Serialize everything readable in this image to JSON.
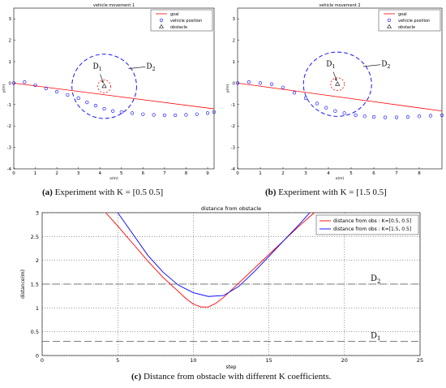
{
  "colors": {
    "goal": "#ff0000",
    "vehicle": "#0000ff",
    "obstacle": "#000000",
    "circle": "#0000ff",
    "inner_circle": "#ff0000",
    "dash_line": "#555555"
  },
  "chart_data": [
    {
      "type": "scatter",
      "title": "vehicle movement 1",
      "xlabel": "x(m)",
      "ylabel": "y(m)",
      "xlim": [
        0,
        9.3
      ],
      "ylim": [
        -4,
        3.5
      ],
      "xticks": [
        "0",
        "1",
        "2",
        "3",
        "4",
        "5",
        "6",
        "7",
        "8",
        "9"
      ],
      "yticks": [
        "-4",
        "-3",
        "-2",
        "-1",
        "0",
        "1",
        "2",
        "3"
      ],
      "legend": [
        "goal",
        "vehicle position",
        "obstacle"
      ],
      "legend_position": "top-right",
      "goal_line": {
        "x": [
          0,
          9.3
        ],
        "y": [
          0,
          -1.2
        ]
      },
      "obstacle": {
        "x": 4.2,
        "y": -0.15
      },
      "radius_D1": 0.3,
      "radius_D2": 1.5,
      "region_labels": {
        "d1": "D",
        "d1_sub": "1",
        "d2": "D",
        "d2_sub": "2"
      },
      "vehicle_x": [
        0,
        0.5,
        1.0,
        1.5,
        2.0,
        2.5,
        3.0,
        3.4,
        3.8,
        4.2,
        4.6,
        5.0,
        5.5,
        6.0,
        6.5,
        7.0,
        7.5,
        8.0,
        8.5,
        9.0,
        9.3
      ],
      "vehicle_y": [
        0,
        0.05,
        -0.1,
        -0.25,
        -0.4,
        -0.55,
        -0.7,
        -0.9,
        -1.05,
        -1.2,
        -1.3,
        -1.35,
        -1.4,
        -1.45,
        -1.48,
        -1.5,
        -1.5,
        -1.48,
        -1.45,
        -1.4,
        -1.35
      ],
      "caption_label": "(a)",
      "caption_text": " Experiment with  K = [0.5    0.5]"
    },
    {
      "type": "scatter",
      "title": "vehicle movement 2",
      "xlabel": "x(m)",
      "ylabel": "y(m)",
      "xlim": [
        0,
        9
      ],
      "ylim": [
        -4,
        3.5
      ],
      "xticks": [
        "0",
        "1",
        "2",
        "3",
        "4",
        "5",
        "6",
        "7",
        "8"
      ],
      "yticks": [
        "-4",
        "-3",
        "-2",
        "-1",
        "0",
        "1",
        "2",
        "3"
      ],
      "legend": [
        "goal",
        "vehicle position",
        "obstacle"
      ],
      "legend_position": "top-right",
      "goal_line": {
        "x": [
          0,
          9
        ],
        "y": [
          0,
          -1.3
        ]
      },
      "obstacle": {
        "x": 4.4,
        "y": -0.05
      },
      "radius_D1": 0.3,
      "radius_D2": 1.5,
      "region_labels": {
        "d1": "D",
        "d1_sub": "1",
        "d2": "D",
        "d2_sub": "2"
      },
      "vehicle_x": [
        0,
        0.5,
        1.0,
        1.5,
        2.0,
        2.5,
        3.0,
        3.5,
        3.9,
        4.3,
        4.7,
        5.2,
        5.6,
        6.0,
        6.5,
        7.0,
        7.5,
        8.0,
        8.5,
        9.0
      ],
      "vehicle_y": [
        0,
        0.05,
        0.0,
        -0.05,
        -0.2,
        -0.45,
        -0.7,
        -0.95,
        -1.15,
        -1.3,
        -1.4,
        -1.5,
        -1.55,
        -1.58,
        -1.6,
        -1.6,
        -1.58,
        -1.55,
        -1.52,
        -1.5
      ],
      "caption_label": "(b)",
      "caption_text": " Experiment with  K = [1.5    0.5]"
    },
    {
      "type": "line",
      "title": "distance from obstacle",
      "xlabel": "step",
      "ylabel": "distance(m)",
      "xlim": [
        0,
        25
      ],
      "ylim": [
        0,
        3
      ],
      "xticks": [
        "0",
        "5",
        "10",
        "15",
        "20",
        "25"
      ],
      "yticks": [
        "0",
        "0.5",
        "1",
        "1.5",
        "2",
        "2.5",
        "3"
      ],
      "grid": true,
      "legend_position": "top-right",
      "series": [
        {
          "name": "distance from obs : K=[0.5, 0.5]",
          "x": [
            4.2,
            5,
            6,
            7,
            8,
            9,
            9.5,
            10,
            10.5,
            11,
            11.5,
            12,
            13,
            14,
            15,
            16,
            17,
            18
          ],
          "y": [
            3.0,
            2.72,
            2.35,
            1.98,
            1.64,
            1.35,
            1.2,
            1.08,
            1.02,
            1.02,
            1.1,
            1.22,
            1.52,
            1.82,
            2.12,
            2.42,
            2.72,
            3.0
          ]
        },
        {
          "name": "distance from obs : K=[1.5, 0.5]",
          "x": [
            5,
            6,
            7,
            8,
            9,
            10,
            11,
            12,
            13,
            14,
            15,
            16,
            17,
            17.7
          ],
          "y": [
            3.0,
            2.55,
            2.1,
            1.75,
            1.48,
            1.32,
            1.24,
            1.26,
            1.45,
            1.75,
            2.08,
            2.42,
            2.75,
            3.0
          ]
        }
      ],
      "thresholds": [
        {
          "label": "D",
          "sub": "2",
          "y": 1.5
        },
        {
          "label": "D",
          "sub": "1",
          "y": 0.3
        }
      ],
      "caption_label": "(c)",
      "caption_text": " Distance from obstacle with different K coefficients."
    }
  ]
}
